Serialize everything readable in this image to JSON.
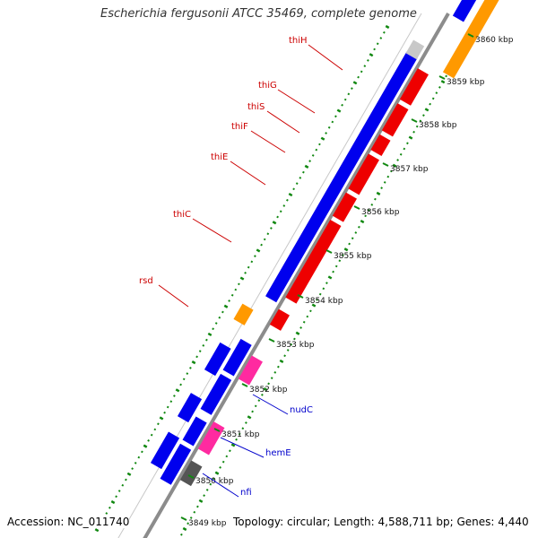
{
  "title": "Escherichia fergusonii ATCC 35469, complete genome",
  "footer": {
    "accession": "Accession: NC_011740",
    "summary": "Topology: circular; Length: 4,588,711 bp; Genes: 4,440"
  },
  "colors": {
    "background": "#ffffff",
    "backbone": "#8c8c8c",
    "forward_cds": "#0000ee",
    "reverse_cds": "#ee0000",
    "orange_cds": "#ff9900",
    "pink_cds": "#ff2aa0",
    "grey_cds": "#555555",
    "light_cds": "#c8c8c8",
    "gc_ticks": "#118811",
    "red_labels": "#cc0000",
    "blue_labels": "#0000cc"
  },
  "ticks": [
    "3849 kbp",
    "3850 kbp",
    "3851 kbp",
    "3852 kbp",
    "3853 kbp",
    "3854 kbp",
    "3855 kbp",
    "3856 kbp",
    "3857 kbp",
    "3858 kbp",
    "3859 kbp",
    "3860 kbp"
  ],
  "gene_labels": [
    {
      "text": "thiH",
      "color": "red"
    },
    {
      "text": "thiG",
      "color": "red"
    },
    {
      "text": "thiS",
      "color": "red"
    },
    {
      "text": "thiF",
      "color": "red"
    },
    {
      "text": "thiE",
      "color": "red"
    },
    {
      "text": "thiC",
      "color": "red"
    },
    {
      "text": "rsd",
      "color": "red"
    },
    {
      "text": "nudC",
      "color": "blue"
    },
    {
      "text": "hemE",
      "color": "blue"
    },
    {
      "text": "nfi",
      "color": "blue"
    }
  ]
}
